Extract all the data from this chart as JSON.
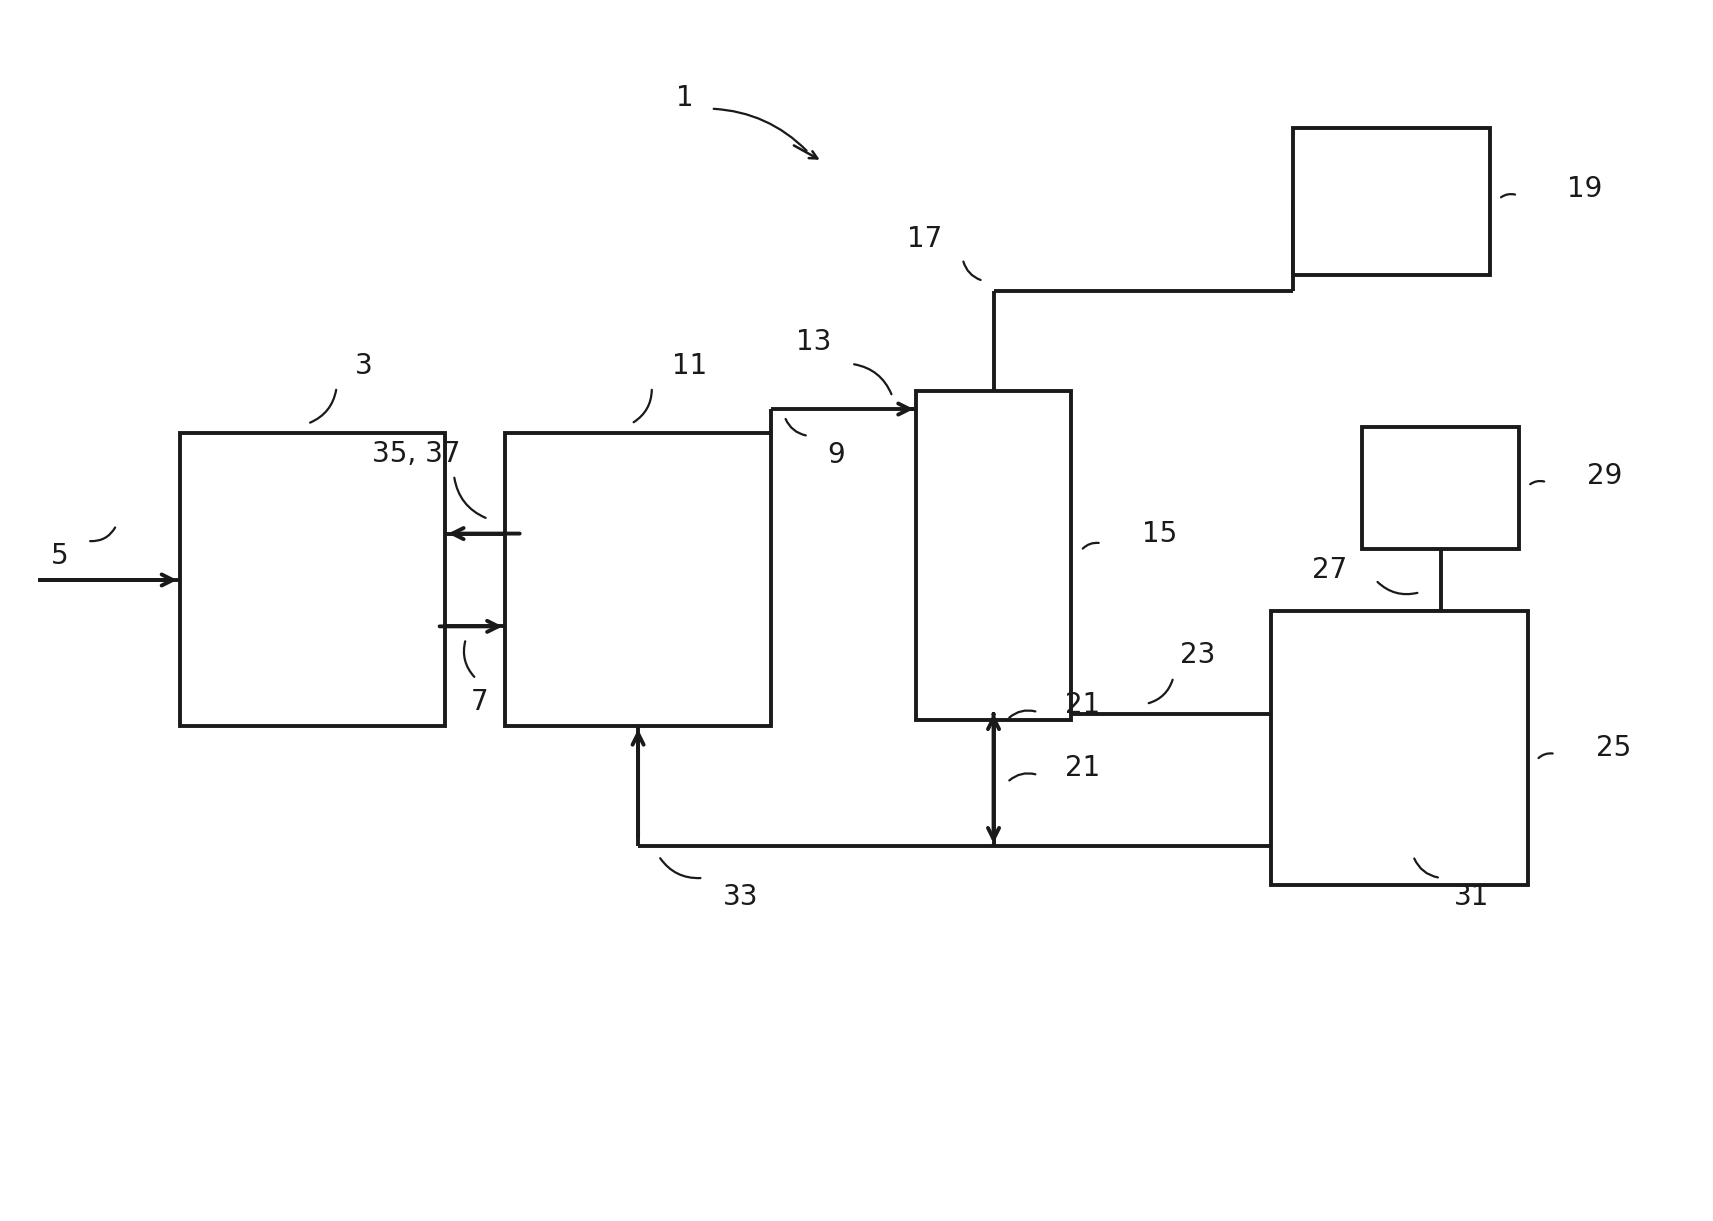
{
  "bg_color": "#ffffff",
  "line_color": "#1a1a1a",
  "lw": 2.8,
  "arrow_scale": 20,
  "font_size": 20,
  "figsize": [
    17.13,
    12.21
  ],
  "dpi": 100,
  "boxes": {
    "box3": {
      "ix": 0.105,
      "iy": 0.355,
      "iw": 0.155,
      "ih": 0.24
    },
    "box11": {
      "ix": 0.295,
      "iy": 0.355,
      "iw": 0.155,
      "ih": 0.24
    },
    "box15": {
      "ix": 0.535,
      "iy": 0.32,
      "iw": 0.09,
      "ih": 0.27
    },
    "box19": {
      "ix": 0.755,
      "iy": 0.105,
      "iw": 0.115,
      "ih": 0.12
    },
    "box25": {
      "ix": 0.742,
      "iy": 0.5,
      "iw": 0.15,
      "ih": 0.225
    },
    "box29": {
      "ix": 0.795,
      "iy": 0.35,
      "iw": 0.092,
      "ih": 0.1
    }
  }
}
